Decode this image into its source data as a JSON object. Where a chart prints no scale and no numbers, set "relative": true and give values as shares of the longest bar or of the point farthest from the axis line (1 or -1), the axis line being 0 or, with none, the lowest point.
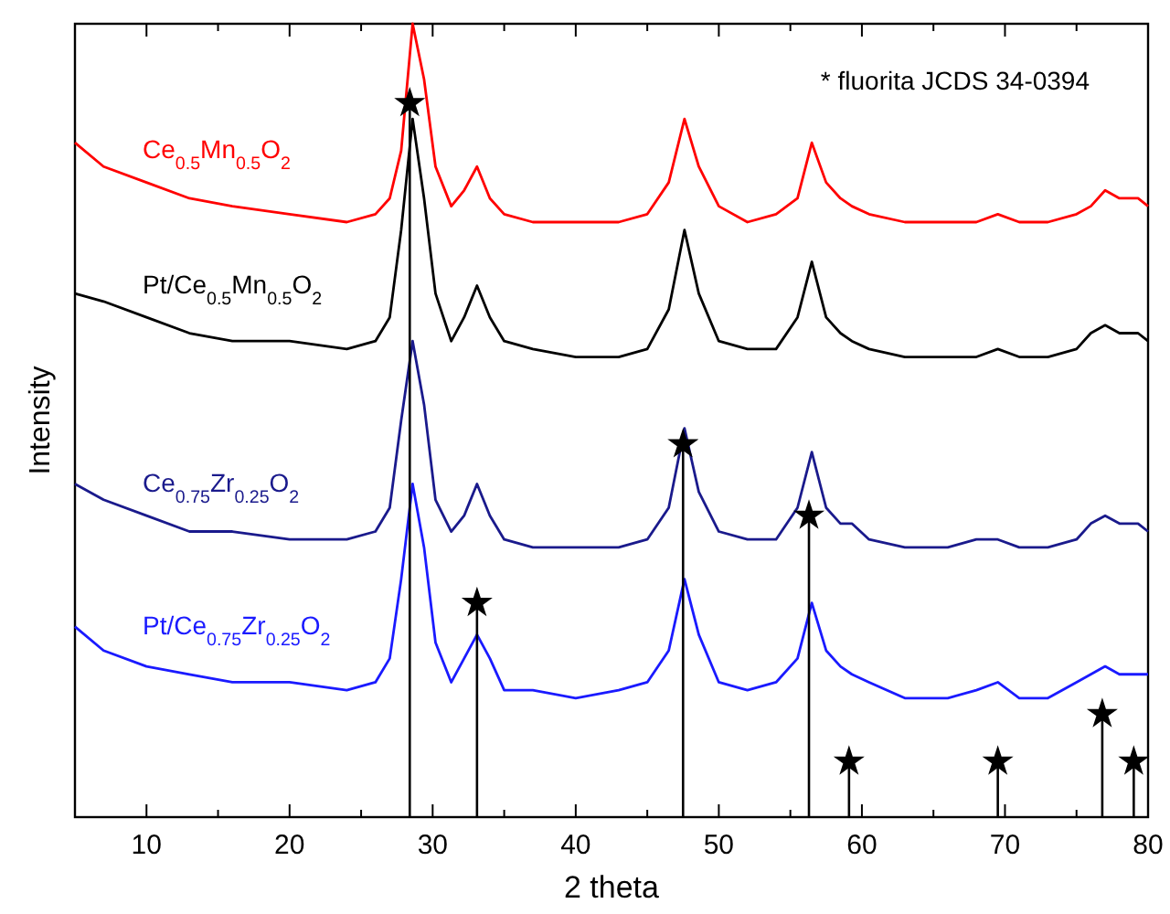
{
  "chart_data": {
    "type": "line",
    "relative": true,
    "xlabel": "2 theta",
    "ylabel": "Intensity",
    "xlim": [
      5,
      80
    ],
    "xticks": [
      {
        "value": 5,
        "label": null
      },
      10,
      {
        "value": 15,
        "label": null
      },
      20,
      {
        "value": 25,
        "label": null
      },
      30,
      {
        "value": 35,
        "label": null
      },
      40,
      {
        "value": 45,
        "label": null
      },
      50,
      {
        "value": 55,
        "label": null
      },
      60,
      {
        "value": 65,
        "label": null
      },
      70,
      {
        "value": 75,
        "label": null
      },
      80
    ],
    "annotations": [
      "* fluorita JCDS 34-0394"
    ],
    "x": [
      5,
      7,
      10,
      13,
      16,
      20,
      24,
      26,
      27,
      27.8,
      28.6,
      29.4,
      30.2,
      31.3,
      32.2,
      33.1,
      34,
      35,
      37,
      40,
      43,
      45,
      46.5,
      47.6,
      48.6,
      50,
      52,
      54,
      55.5,
      56.5,
      57.5,
      58.5,
      59.3,
      60.5,
      63,
      66,
      68,
      69.5,
      71,
      73,
      75,
      76,
      77,
      78,
      78.7,
      79.3,
      80
    ],
    "series": [
      {
        "name": "Ce$_{0.5}$Mn$_{0.5}$O$_{2}$",
        "color": "#ff0000",
        "values": [
          0.85,
          0.82,
          0.8,
          0.78,
          0.77,
          0.76,
          0.75,
          0.76,
          0.78,
          0.84,
          1.0,
          0.93,
          0.82,
          0.77,
          0.79,
          0.82,
          0.78,
          0.76,
          0.75,
          0.75,
          0.75,
          0.76,
          0.8,
          0.88,
          0.82,
          0.77,
          0.75,
          0.76,
          0.78,
          0.85,
          0.8,
          0.78,
          0.77,
          0.76,
          0.75,
          0.75,
          0.75,
          0.76,
          0.75,
          0.75,
          0.76,
          0.77,
          0.79,
          0.78,
          0.78,
          0.78,
          0.77
        ]
      },
      {
        "name": "Pt/Ce$_{0.5}$Mn$_{0.5}$O$_{2}$",
        "color": "#000000",
        "values": [
          0.66,
          0.65,
          0.63,
          0.61,
          0.6,
          0.6,
          0.59,
          0.6,
          0.63,
          0.74,
          0.88,
          0.78,
          0.66,
          0.6,
          0.63,
          0.67,
          0.63,
          0.6,
          0.59,
          0.58,
          0.58,
          0.59,
          0.64,
          0.74,
          0.66,
          0.6,
          0.59,
          0.59,
          0.63,
          0.7,
          0.63,
          0.61,
          0.6,
          0.59,
          0.58,
          0.58,
          0.58,
          0.59,
          0.58,
          0.58,
          0.59,
          0.61,
          0.62,
          0.61,
          0.61,
          0.61,
          0.6
        ]
      },
      {
        "name": "Ce$_{0.75}$Zr$_{0.25}$O$_{2}$",
        "color": "#1a1a8c",
        "values": [
          0.42,
          0.4,
          0.38,
          0.36,
          0.36,
          0.35,
          0.35,
          0.36,
          0.39,
          0.5,
          0.6,
          0.52,
          0.4,
          0.36,
          0.38,
          0.42,
          0.38,
          0.35,
          0.34,
          0.34,
          0.34,
          0.35,
          0.39,
          0.49,
          0.41,
          0.36,
          0.35,
          0.35,
          0.39,
          0.46,
          0.39,
          0.37,
          0.37,
          0.35,
          0.34,
          0.34,
          0.35,
          0.35,
          0.34,
          0.34,
          0.35,
          0.37,
          0.38,
          0.37,
          0.37,
          0.37,
          0.36
        ]
      },
      {
        "name": "Pt/Ce$_{0.75}$Zr$_{0.25}$O$_{2}$",
        "color": "#1a1aff",
        "values": [
          0.24,
          0.21,
          0.19,
          0.18,
          0.17,
          0.17,
          0.16,
          0.17,
          0.2,
          0.3,
          0.42,
          0.34,
          0.22,
          0.17,
          0.2,
          0.23,
          0.2,
          0.16,
          0.16,
          0.15,
          0.16,
          0.17,
          0.21,
          0.3,
          0.23,
          0.17,
          0.16,
          0.17,
          0.2,
          0.27,
          0.21,
          0.19,
          0.18,
          0.17,
          0.15,
          0.15,
          0.16,
          0.17,
          0.15,
          0.15,
          0.17,
          0.18,
          0.19,
          0.18,
          0.18,
          0.18,
          0.18
        ]
      },
      {
        "type": "lollipop",
        "marker": "star",
        "color": "#000000",
        "x": [
          28.4,
          33.1,
          47.5,
          56.3,
          59.1,
          69.5,
          76.8,
          79.0
        ],
        "values": [
          0.9,
          0.27,
          0.47,
          0.38,
          0.07,
          0.07,
          0.13,
          0.07
        ]
      }
    ]
  }
}
